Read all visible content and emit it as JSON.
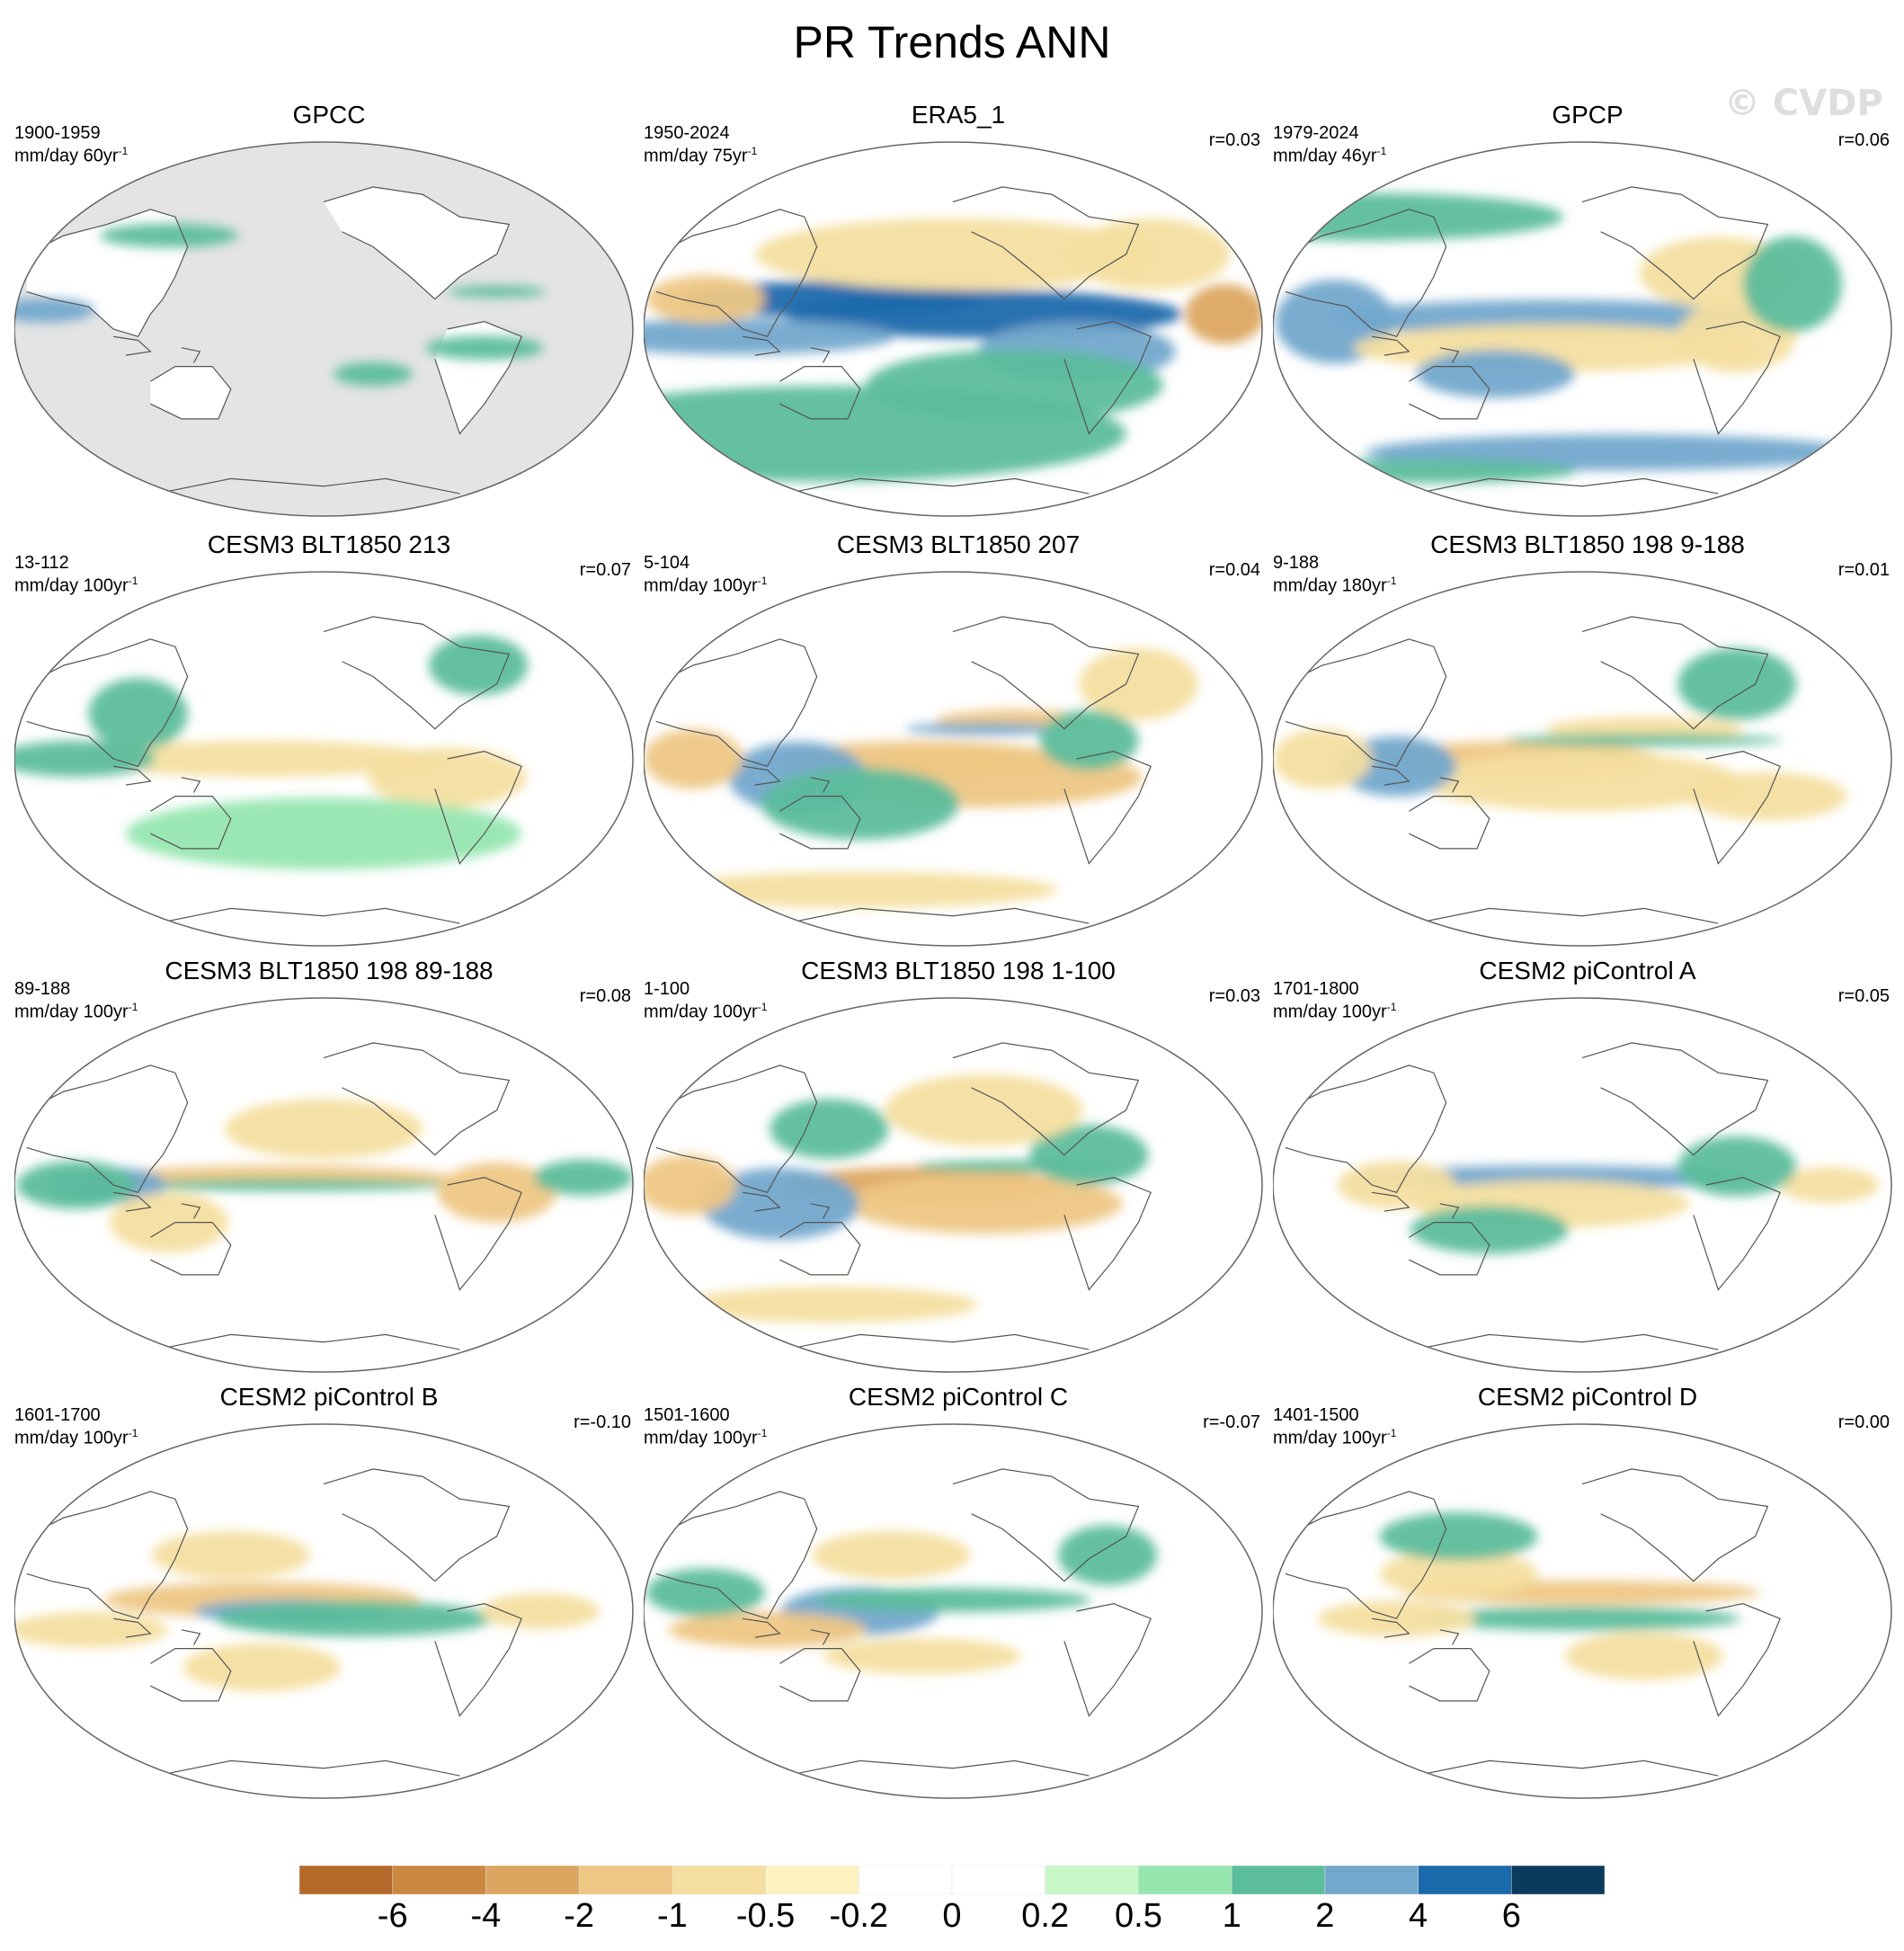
{
  "title": "PR Trends ANN",
  "watermark": "© CVDP",
  "panels": [
    {
      "title": "GPCC",
      "period": "1900-1959",
      "units": "mm/day 60yr",
      "r": "",
      "style": "gpcc",
      "blobs": [
        [
          0.05,
          0.45,
          5,
          2,
          2,
          0.3
        ],
        [
          0.76,
          0.55,
          6,
          2,
          1,
          0.3
        ],
        [
          0.78,
          0.4,
          5,
          1,
          1,
          0.3
        ],
        [
          0.25,
          0.25,
          7,
          2,
          1,
          0.4
        ],
        [
          0.58,
          0.62,
          4,
          2,
          1,
          0.4
        ]
      ]
    },
    {
      "title": "ERA5_1",
      "period": "1950-2024",
      "units": "mm/day 75yr",
      "r": "r=0.03",
      "style": "era5",
      "blobs": [
        [
          0.55,
          0.46,
          20,
          4,
          5,
          -0.2
        ],
        [
          0.3,
          0.42,
          15,
          3,
          4,
          0.0
        ],
        [
          0.15,
          0.52,
          16,
          3,
          3,
          0.0
        ],
        [
          0.7,
          0.56,
          10,
          5,
          2,
          0.1
        ],
        [
          0.3,
          0.78,
          30,
          8,
          1,
          0.0
        ],
        [
          0.1,
          0.42,
          6,
          4,
          -2,
          0.0
        ],
        [
          0.94,
          0.46,
          4,
          5,
          -3,
          0.0
        ],
        [
          0.82,
          0.3,
          8,
          6,
          -1,
          0.0
        ],
        [
          0.5,
          0.3,
          20,
          6,
          -0.8,
          0.0
        ],
        [
          0.6,
          0.65,
          15,
          6,
          1,
          0.0
        ]
      ]
    },
    {
      "title": "GPCP",
      "period": "1979-2024",
      "units": "mm/day 46yr",
      "r": "r=0.06",
      "style": "gpcp",
      "blobs": [
        [
          0.1,
          0.48,
          6,
          7,
          2,
          0.0
        ],
        [
          0.45,
          0.47,
          22,
          3,
          2,
          0.0
        ],
        [
          0.45,
          0.55,
          20,
          4,
          -1,
          0.0
        ],
        [
          0.36,
          0.62,
          8,
          4,
          2,
          0.3
        ],
        [
          0.55,
          0.83,
          25,
          3,
          2,
          0.0
        ],
        [
          0.25,
          0.88,
          15,
          2,
          1.5,
          0.0
        ],
        [
          0.72,
          0.35,
          8,
          6,
          -1,
          0.0
        ],
        [
          0.75,
          0.52,
          6,
          6,
          -1,
          0.0
        ],
        [
          0.84,
          0.38,
          5,
          8,
          1.5,
          0.0
        ],
        [
          0.15,
          0.2,
          20,
          4,
          1,
          0.0
        ]
      ]
    },
    {
      "title": "CESM3 BLT1850 213",
      "period": "13-112",
      "units": "mm/day 100yr",
      "r": "r=0.07",
      "style": "model",
      "blobs": [
        [
          0.4,
          0.5,
          18,
          3,
          -1,
          0.0
        ],
        [
          0.2,
          0.38,
          5,
          6,
          1,
          0.0
        ],
        [
          0.1,
          0.5,
          8,
          3,
          1,
          0.0
        ],
        [
          0.7,
          0.55,
          8,
          5,
          -1,
          0.0
        ],
        [
          0.75,
          0.25,
          5,
          5,
          1,
          0.0
        ],
        [
          0.5,
          0.7,
          20,
          6,
          0.6,
          0.0
        ]
      ]
    },
    {
      "title": "CESM3 BLT1850 207",
      "period": "5-104",
      "units": "mm/day 100yr",
      "r": "r=0.04",
      "style": "model",
      "blobs": [
        [
          0.45,
          0.5,
          14,
          3,
          -2,
          0.2
        ],
        [
          0.55,
          0.55,
          16,
          5,
          -1.5,
          0.3
        ],
        [
          0.25,
          0.55,
          7,
          6,
          2.5,
          0.0
        ],
        [
          0.35,
          0.62,
          10,
          6,
          1.5,
          0.3
        ],
        [
          0.6,
          0.4,
          8,
          2,
          -1.5,
          0.0
        ],
        [
          0.55,
          0.42,
          8,
          1,
          2,
          0.0
        ],
        [
          0.08,
          0.5,
          5,
          5,
          -1.5,
          0.0
        ],
        [
          0.8,
          0.3,
          6,
          6,
          -1,
          0.0
        ],
        [
          0.72,
          0.45,
          5,
          5,
          1.5,
          0.0
        ],
        [
          0.35,
          0.85,
          20,
          3,
          -0.6,
          0.0
        ]
      ]
    },
    {
      "title": "CESM3 BLT1850 198 9-188",
      "period": "9-188",
      "units": "mm/day 180yr",
      "r": "r=0.01",
      "style": "model",
      "blobs": [
        [
          0.4,
          0.5,
          14,
          3,
          -2,
          0.2
        ],
        [
          0.5,
          0.56,
          16,
          5,
          -1,
          0.3
        ],
        [
          0.2,
          0.52,
          6,
          5,
          2,
          0.0
        ],
        [
          0.6,
          0.42,
          10,
          2,
          -1,
          0.0
        ],
        [
          0.6,
          0.45,
          14,
          1,
          1.5,
          0.0
        ],
        [
          0.08,
          0.5,
          5,
          5,
          -1,
          0.0
        ],
        [
          0.75,
          0.3,
          6,
          6,
          1,
          0.0
        ],
        [
          0.8,
          0.6,
          8,
          4,
          -0.8,
          0.0
        ]
      ]
    },
    {
      "title": "CESM3 BLT1850 198 89-188",
      "period": "89-188",
      "units": "mm/day 100yr",
      "r": "r=0.08",
      "style": "model",
      "blobs": [
        [
          0.42,
          0.48,
          18,
          2,
          -1.5,
          0.0
        ],
        [
          0.45,
          0.5,
          16,
          1,
          1.5,
          0.0
        ],
        [
          0.15,
          0.5,
          6,
          3,
          2,
          0.0
        ],
        [
          0.78,
          0.52,
          6,
          5,
          -1.5,
          0.0
        ],
        [
          0.25,
          0.6,
          6,
          5,
          -1,
          0.0
        ],
        [
          0.1,
          0.5,
          6,
          4,
          1.5,
          0.0
        ],
        [
          0.5,
          0.35,
          10,
          5,
          -0.8,
          0.0
        ],
        [
          0.92,
          0.48,
          5,
          3,
          1,
          0.0
        ]
      ]
    },
    {
      "title": "CESM3 BLT1850 198 1-100",
      "period": "1-100",
      "units": "mm/day 100yr",
      "r": "r=0.03",
      "style": "model",
      "blobs": [
        [
          0.45,
          0.5,
          14,
          3,
          -2.5,
          0.1
        ],
        [
          0.55,
          0.55,
          14,
          5,
          -1.5,
          0.3
        ],
        [
          0.22,
          0.55,
          8,
          6,
          2.5,
          0.0
        ],
        [
          0.6,
          0.45,
          10,
          1,
          1.5,
          0.0
        ],
        [
          0.07,
          0.5,
          5,
          5,
          -2,
          0.0
        ],
        [
          0.72,
          0.42,
          6,
          5,
          1.5,
          0.0
        ],
        [
          0.55,
          0.3,
          10,
          6,
          -1,
          0.0
        ],
        [
          0.3,
          0.35,
          6,
          5,
          1,
          0.0
        ],
        [
          0.3,
          0.82,
          15,
          3,
          -0.8,
          0.0
        ]
      ]
    },
    {
      "title": "CESM2 piControl A",
      "period": "1701-1800",
      "units": "mm/day 100yr",
      "r": "r=0.05",
      "style": "model",
      "blobs": [
        [
          0.45,
          0.48,
          20,
          2,
          2,
          0.0
        ],
        [
          0.45,
          0.55,
          14,
          4,
          -1,
          0.0
        ],
        [
          0.2,
          0.5,
          6,
          4,
          -1,
          0.0
        ],
        [
          0.9,
          0.5,
          5,
          3,
          -1,
          0.0
        ],
        [
          0.35,
          0.62,
          8,
          4,
          1,
          0.0
        ],
        [
          0.75,
          0.45,
          6,
          5,
          1,
          0.0
        ]
      ]
    },
    {
      "title": "CESM2 piControl B",
      "period": "1601-1700",
      "units": "mm/day 100yr",
      "r": "r=-0.10",
      "style": "model",
      "blobs": [
        [
          0.4,
          0.47,
          16,
          3,
          -1.5,
          0.0
        ],
        [
          0.45,
          0.5,
          10,
          2,
          2.5,
          0.0
        ],
        [
          0.55,
          0.52,
          14,
          3,
          1,
          0.0
        ],
        [
          0.12,
          0.55,
          8,
          3,
          -1,
          0.0
        ],
        [
          0.85,
          0.5,
          6,
          3,
          -0.8,
          0.0
        ],
        [
          0.35,
          0.35,
          8,
          4,
          -0.8,
          0.0
        ],
        [
          0.4,
          0.65,
          8,
          4,
          -0.8,
          0.0
        ]
      ]
    },
    {
      "title": "CESM2 piControl C",
      "period": "1501-1600",
      "units": "mm/day 100yr",
      "r": "r=-0.07",
      "style": "model",
      "blobs": [
        [
          0.35,
          0.5,
          8,
          4,
          2.5,
          0.0
        ],
        [
          0.2,
          0.55,
          10,
          3,
          -1.5,
          0.0
        ],
        [
          0.5,
          0.47,
          14,
          2,
          1.5,
          0.0
        ],
        [
          0.4,
          0.35,
          8,
          4,
          -1,
          0.0
        ],
        [
          0.45,
          0.62,
          10,
          3,
          -1,
          0.0
        ],
        [
          0.1,
          0.45,
          6,
          4,
          1.5,
          0.0
        ],
        [
          0.75,
          0.35,
          5,
          5,
          1,
          0.0
        ]
      ]
    },
    {
      "title": "CESM2 piControl D",
      "period": "1401-1500",
      "units": "mm/day 100yr",
      "r": "r=0.00",
      "style": "model",
      "blobs": [
        [
          0.5,
          0.45,
          18,
          2,
          -1.5,
          0.0
        ],
        [
          0.5,
          0.52,
          16,
          2,
          1.5,
          0.0
        ],
        [
          0.3,
          0.4,
          8,
          4,
          -0.8,
          0.0
        ],
        [
          0.2,
          0.52,
          8,
          3,
          -1,
          0.0
        ],
        [
          0.6,
          0.62,
          8,
          4,
          -0.8,
          0.0
        ],
        [
          0.3,
          0.3,
          8,
          4,
          1,
          0.0
        ]
      ]
    }
  ],
  "colorbar": {
    "colors": [
      "#b4692a",
      "#cc8840",
      "#dca660",
      "#eec784",
      "#f4dfa0",
      "#fcf2c0",
      "#ffffff",
      "#ffffff",
      "#c8f8c8",
      "#96e6b0",
      "#5cbd9c",
      "#72a8cc",
      "#1a6aac",
      "#0a3a5c"
    ],
    "ticks": [
      "-6",
      "-4",
      "-2",
      "-1",
      "-0.5",
      "-0.2",
      "0",
      "0.2",
      "0.5",
      "1",
      "2",
      "4",
      "6"
    ]
  }
}
